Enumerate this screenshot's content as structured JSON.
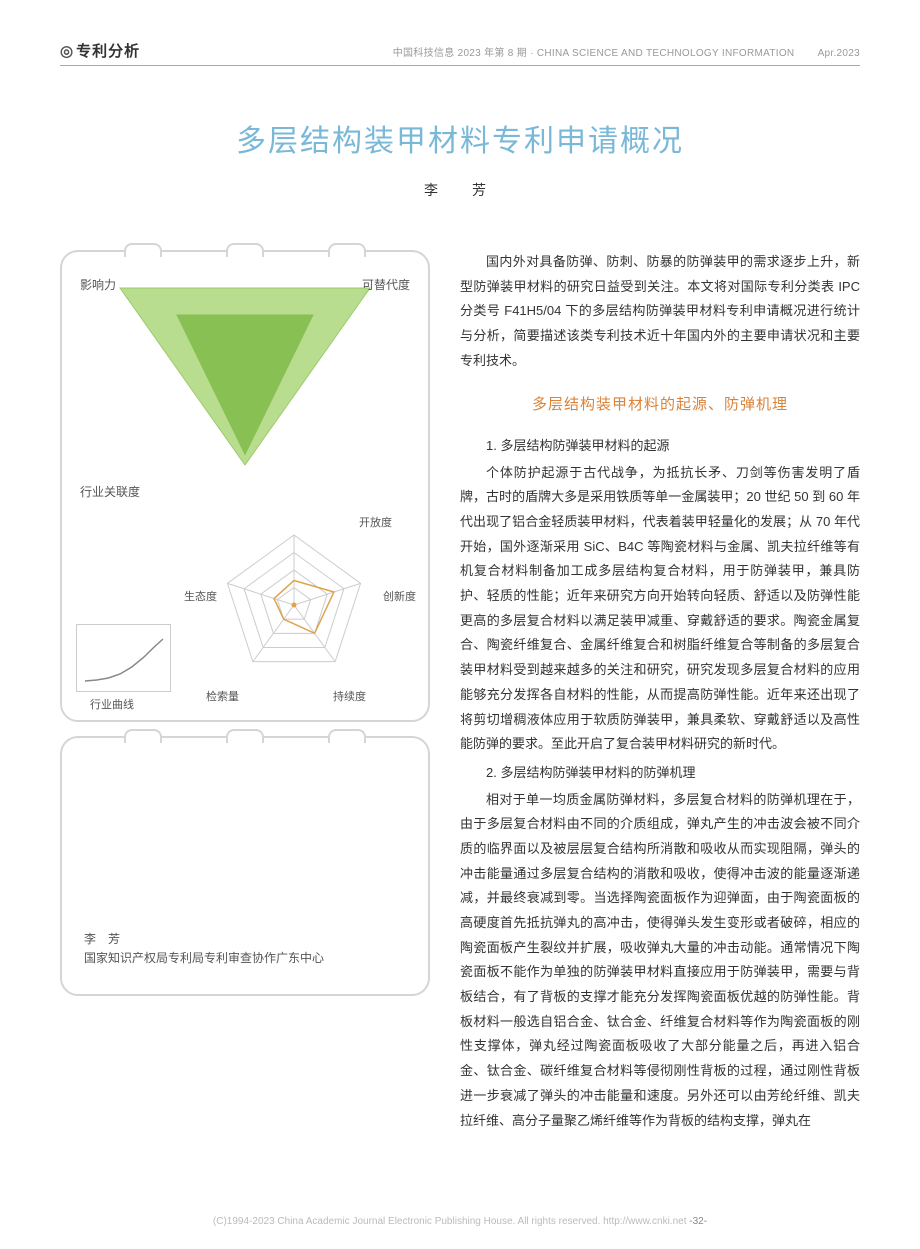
{
  "header": {
    "section_tag": "专利分析",
    "journal_cn": "中国科技信息 2023 年第 8 期",
    "journal_en": "CHINA SCIENCE AND TECHNOLOGY INFORMATION",
    "date": "Apr.2023"
  },
  "title": "多层结构装甲材料专利申请概况",
  "author": "李　芳",
  "triangle_chart": {
    "type": "triangle-radar",
    "vertices": [
      "影响力",
      "可替代度",
      "行业关联度"
    ],
    "outer_color": "#b8dd8f",
    "inner_color": "#7fbb4a",
    "outer_values": [
      1.0,
      1.0,
      1.0
    ],
    "inner_values": [
      0.55,
      0.55,
      0.92
    ],
    "stroke": "#9ccb6a"
  },
  "radar_chart": {
    "type": "radar",
    "axes": [
      "开放度",
      "创新度",
      "持续度",
      "检索量",
      "生态度"
    ],
    "rings": 4,
    "ring_color": "#cccccc",
    "series": [
      {
        "color": "#e0a24a",
        "fill_opacity": 0.0,
        "values": [
          0.35,
          0.6,
          0.5,
          0.25,
          0.3
        ]
      }
    ],
    "center_dot_color": "#e0a24a"
  },
  "curve_chart": {
    "type": "line",
    "caption": "行业曲线",
    "stroke": "#888888",
    "points": [
      [
        0,
        0.08
      ],
      [
        0.15,
        0.1
      ],
      [
        0.3,
        0.14
      ],
      [
        0.45,
        0.22
      ],
      [
        0.6,
        0.36
      ],
      [
        0.75,
        0.55
      ],
      [
        0.88,
        0.75
      ],
      [
        1.0,
        0.92
      ]
    ]
  },
  "affiliation": {
    "name": "李　芳",
    "org": "国家知识产权局专利局专利审查协作广东中心"
  },
  "body": {
    "intro": "国内外对具备防弹、防刺、防暴的防弹装甲的需求逐步上升，新型防弹装甲材料的研究日益受到关注。本文将对国际专利分类表 IPC 分类号 F41H5/04 下的多层结构防弹装甲材料专利申请概况进行统计与分析，简要描述该类专利技术近十年国内外的主要申请状况和主要专利技术。",
    "h2": "多层结构装甲材料的起源、防弹机理",
    "h3_1": "1. 多层结构防弹装甲材料的起源",
    "p1": "个体防护起源于古代战争，为抵抗长矛、刀剑等伤害发明了盾牌，古时的盾牌大多是采用铁质等单一金属装甲；20 世纪 50 到 60 年代出现了铝合金轻质装甲材料，代表着装甲轻量化的发展；从 70 年代开始，国外逐渐采用 SiC、B4C 等陶瓷材料与金属、凯夫拉纤维等有机复合材料制备加工成多层结构复合材料，用于防弹装甲，兼具防护、轻质的性能；近年来研究方向开始转向轻质、舒适以及防弹性能更高的多层复合材料以满足装甲减重、穿戴舒适的要求。陶瓷金属复合、陶瓷纤维复合、金属纤维复合和树脂纤维复合等制备的多层复合装甲材料受到越来越多的关注和研究，研究发现多层复合材料的应用能够充分发挥各自材料的性能，从而提高防弹性能。近年来还出现了将剪切增稠液体应用于软质防弹装甲，兼具柔软、穿戴舒适以及高性能防弹的要求。至此开启了复合装甲材料研究的新时代。",
    "h3_2": "2. 多层结构防弹装甲材料的防弹机理",
    "p2": "相对于单一均质金属防弹材料，多层复合材料的防弹机理在于，由于多层复合材料由不同的介质组成，弹丸产生的冲击波会被不同介质的临界面以及被层层复合结构所消散和吸收从而实现阻隔，弹头的冲击能量通过多层复合结构的消散和吸收，使得冲击波的能量逐渐递减，并最终衰减到零。当选择陶瓷面板作为迎弹面，由于陶瓷面板的高硬度首先抵抗弹丸的高冲击，使得弹头发生变形或者破碎，相应的陶瓷面板产生裂纹并扩展，吸收弹丸大量的冲击动能。通常情况下陶瓷面板不能作为单独的防弹装甲材料直接应用于防弹装甲，需要与背板结合，有了背板的支撑才能充分发挥陶瓷面板优越的防弹性能。背板材料一般选自铝合金、钛合金、纤维复合材料等作为陶瓷面板的刚性支撑体，弹丸经过陶瓷面板吸收了大部分能量之后，再进入铝合金、钛合金、碳纤维复合材料等侵彻刚性背板的过程，通过刚性背板进一步衰减了弹头的冲击能量和速度。另外还可以由芳纶纤维、凯夫拉纤维、高分子量聚乙烯纤维等作为背板的结构支撑，弹丸在"
  },
  "footer": {
    "copyright": "(C)1994-2023 China Academic Journal Electronic Publishing House. All rights reserved.    http://www.cnki.net",
    "page_num": "-32-"
  }
}
